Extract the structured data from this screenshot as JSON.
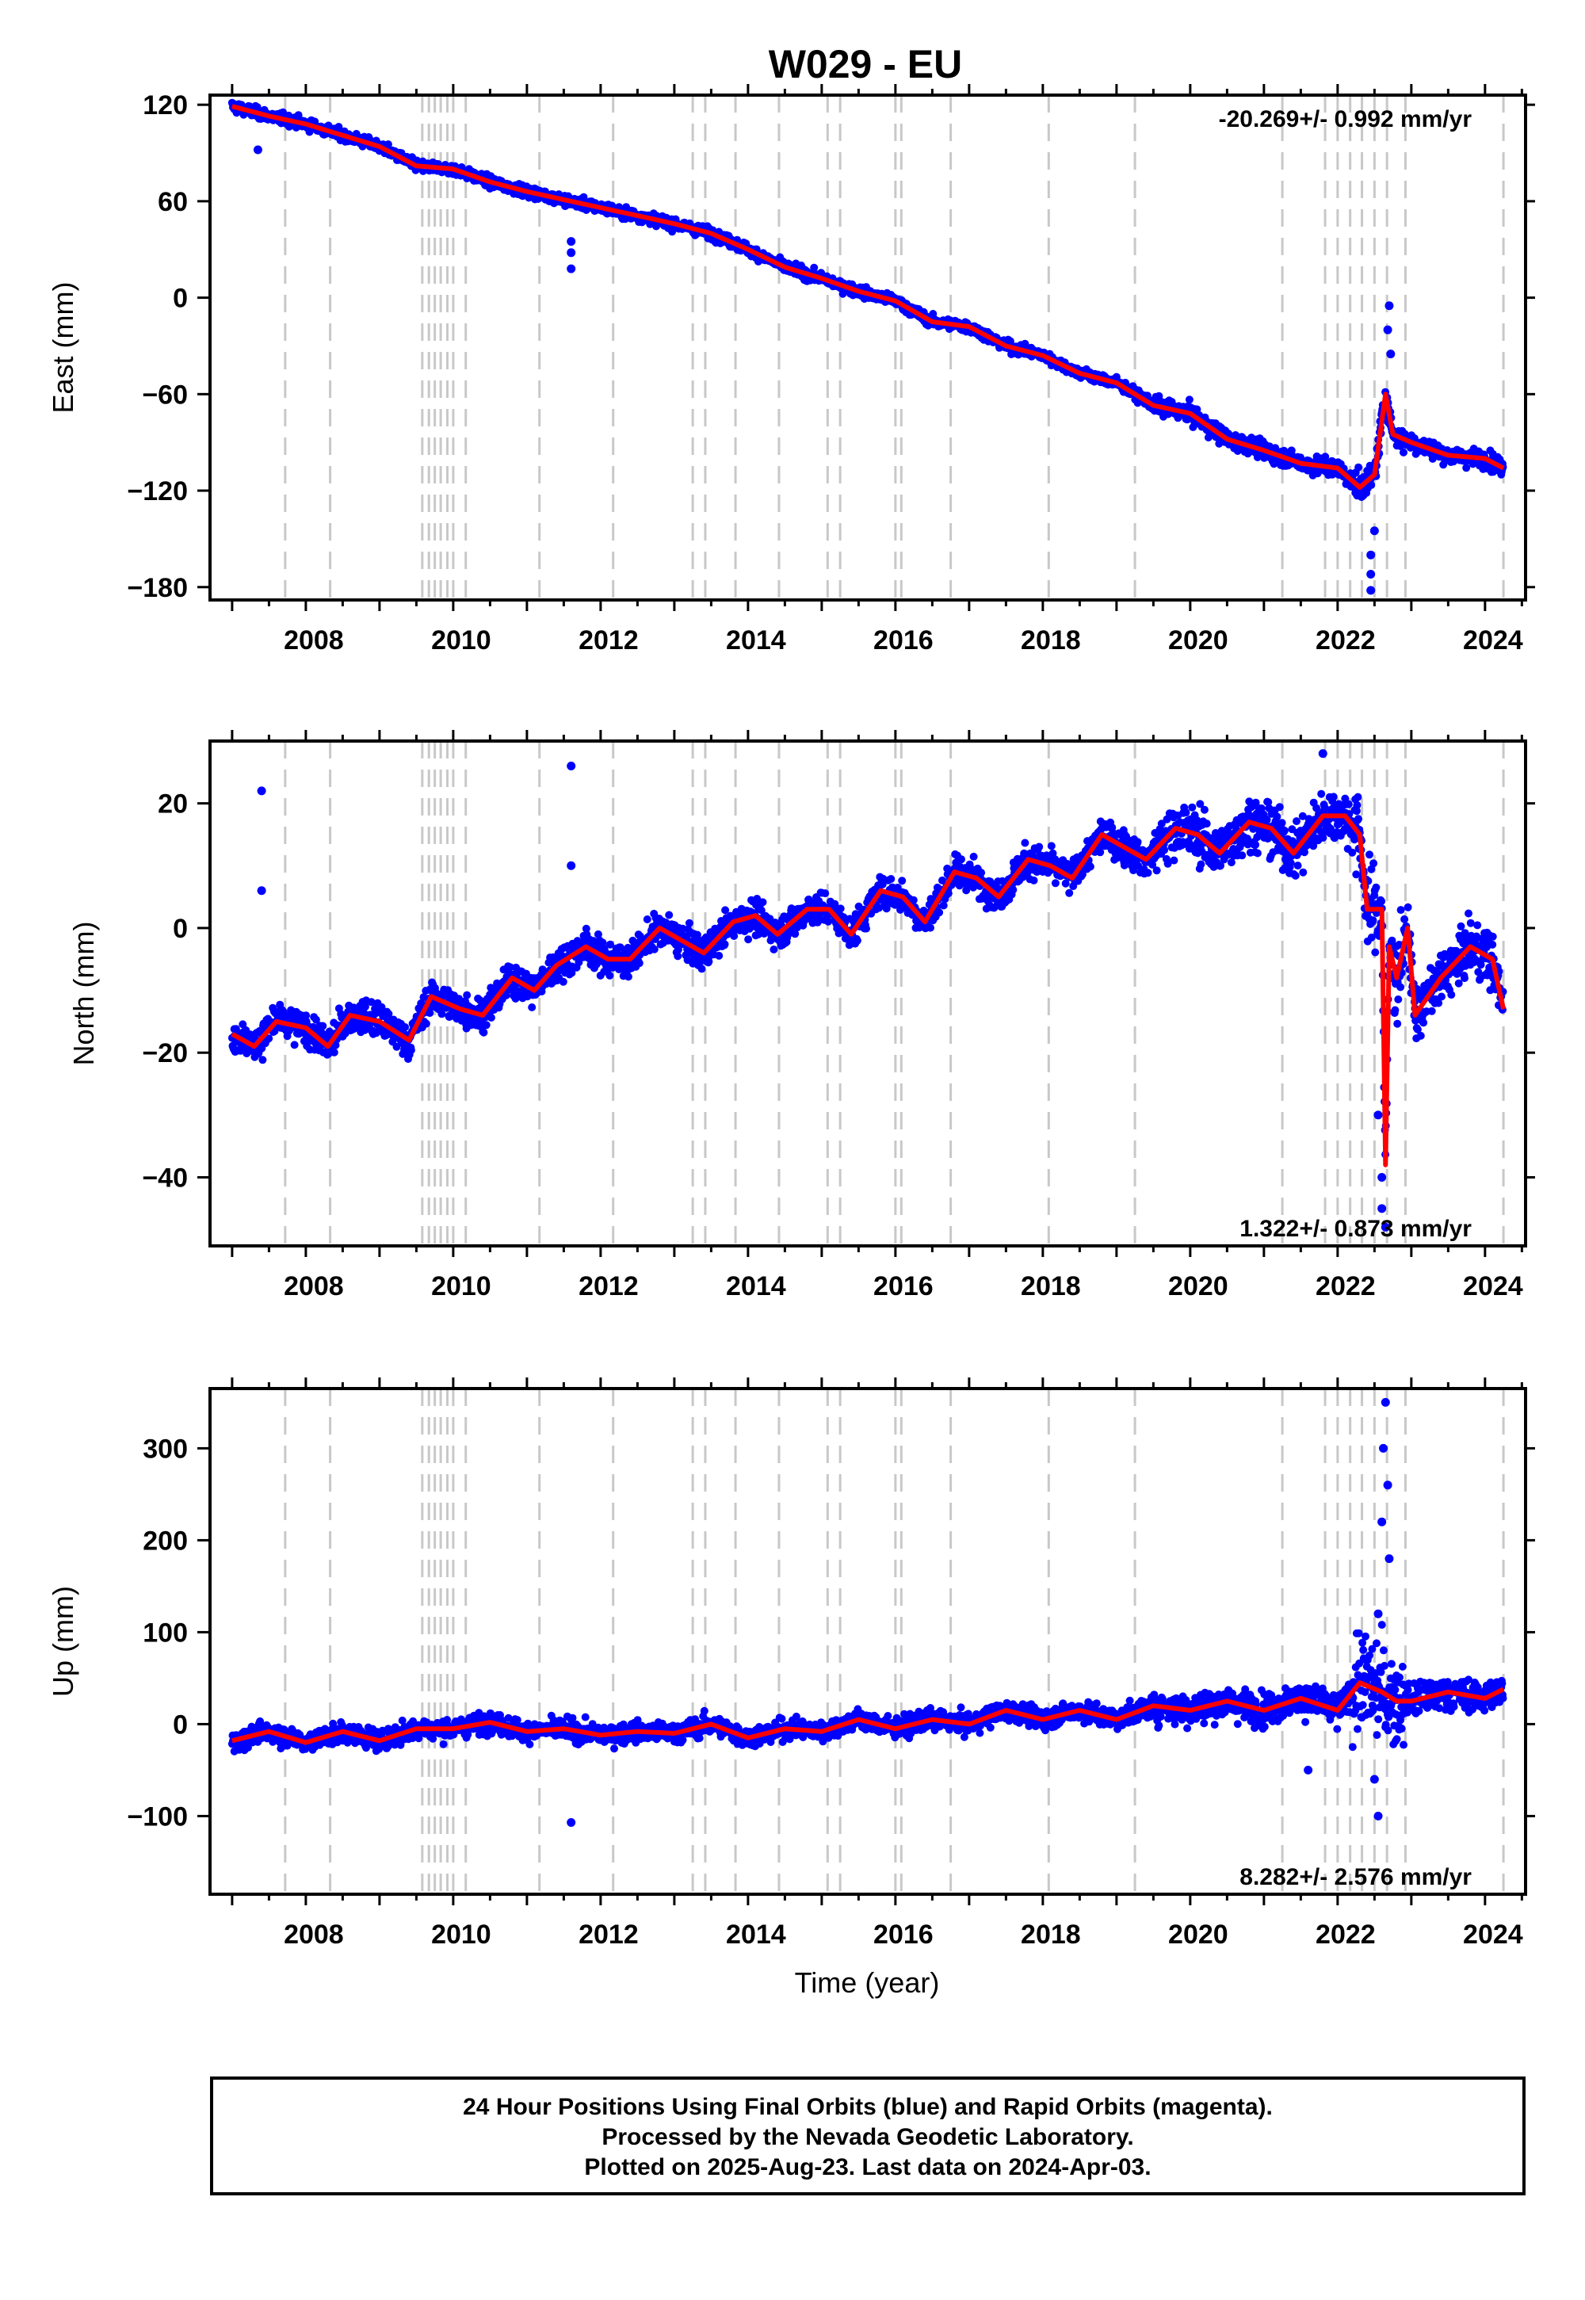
{
  "chart_data": {
    "title": "W029 - EU",
    "type": "scatter",
    "xlabel": "Time (year)",
    "xlim": [
      2006.7,
      2024.55
    ],
    "x_ticks": [
      2008,
      2010,
      2012,
      2014,
      2016,
      2018,
      2020,
      2022,
      2024
    ],
    "x_tick_labels": [
      "2008",
      "2010",
      "2012",
      "2014",
      "2016",
      "2018",
      "2020",
      "2022",
      "2024"
    ],
    "data_start": 2007.0,
    "data_end": 2024.25,
    "colors": {
      "final_orbits": "#0000ff",
      "rapid_orbits": "#ff00ff",
      "model": "#ff0000",
      "steps": "#c8c8c8"
    },
    "step_lines": [
      2007.72,
      2008.33,
      2009.58,
      2009.67,
      2009.75,
      2009.83,
      2009.92,
      2010.0,
      2010.17,
      2011.17,
      2012.17,
      2013.25,
      2013.42,
      2013.83,
      2014.42,
      2015.08,
      2015.25,
      2016.0,
      2016.08,
      2016.75,
      2018.08,
      2019.25,
      2021.25,
      2021.83,
      2022.0,
      2022.17,
      2022.33,
      2022.5,
      2022.67,
      2022.92,
      2024.25
    ],
    "panels": [
      {
        "id": "east",
        "ylabel": "East (mm)",
        "ylim": [
          -188,
          126
        ],
        "y_ticks": [
          120,
          60,
          0,
          -60,
          -120,
          -180
        ],
        "y_tick_labels": [
          "120",
          "60",
          "0",
          "−60",
          "−120",
          "−180"
        ],
        "rate_text": "-20.269+/- 0.992 mm/yr",
        "rate_position": "top-right",
        "model_series": [
          {
            "x": 2007.0,
            "y": 119
          },
          {
            "x": 2007.5,
            "y": 113
          },
          {
            "x": 2008.0,
            "y": 108
          },
          {
            "x": 2008.5,
            "y": 101
          },
          {
            "x": 2009.0,
            "y": 94
          },
          {
            "x": 2009.5,
            "y": 82
          },
          {
            "x": 2010.0,
            "y": 80
          },
          {
            "x": 2010.5,
            "y": 72
          },
          {
            "x": 2011.0,
            "y": 66
          },
          {
            "x": 2011.5,
            "y": 61
          },
          {
            "x": 2012.0,
            "y": 56
          },
          {
            "x": 2012.5,
            "y": 51
          },
          {
            "x": 2013.0,
            "y": 46
          },
          {
            "x": 2013.5,
            "y": 40
          },
          {
            "x": 2014.0,
            "y": 30
          },
          {
            "x": 2014.5,
            "y": 19
          },
          {
            "x": 2015.0,
            "y": 12
          },
          {
            "x": 2015.5,
            "y": 4
          },
          {
            "x": 2016.0,
            "y": -2
          },
          {
            "x": 2016.5,
            "y": -15
          },
          {
            "x": 2017.0,
            "y": -18
          },
          {
            "x": 2017.5,
            "y": -30
          },
          {
            "x": 2018.0,
            "y": -36
          },
          {
            "x": 2018.5,
            "y": -47
          },
          {
            "x": 2019.0,
            "y": -53
          },
          {
            "x": 2019.5,
            "y": -67
          },
          {
            "x": 2020.0,
            "y": -72
          },
          {
            "x": 2020.5,
            "y": -88
          },
          {
            "x": 2021.0,
            "y": -95
          },
          {
            "x": 2021.5,
            "y": -103
          },
          {
            "x": 2022.0,
            "y": -106
          },
          {
            "x": 2022.3,
            "y": -118
          },
          {
            "x": 2022.5,
            "y": -110
          },
          {
            "x": 2022.65,
            "y": -60
          },
          {
            "x": 2022.75,
            "y": -85
          },
          {
            "x": 2023.0,
            "y": -90
          },
          {
            "x": 2023.5,
            "y": -98
          },
          {
            "x": 2024.0,
            "y": -100
          },
          {
            "x": 2024.25,
            "y": -106
          }
        ],
        "outliers": [
          {
            "x": 2007.35,
            "y": 92
          },
          {
            "x": 2011.6,
            "y": 18
          },
          {
            "x": 2011.6,
            "y": 28
          },
          {
            "x": 2011.6,
            "y": 35
          },
          {
            "x": 2022.45,
            "y": -160
          },
          {
            "x": 2022.45,
            "y": -172
          },
          {
            "x": 2022.45,
            "y": -182
          },
          {
            "x": 2022.5,
            "y": -145
          },
          {
            "x": 2022.7,
            "y": -5
          },
          {
            "x": 2022.68,
            "y": -20
          },
          {
            "x": 2022.72,
            "y": -35
          }
        ]
      },
      {
        "id": "north",
        "ylabel": "North (mm)",
        "ylim": [
          -51,
          30
        ],
        "y_ticks": [
          20,
          0,
          -20,
          -40
        ],
        "y_tick_labels": [
          "20",
          "0",
          "−20",
          "−40"
        ],
        "rate_text": "1.322+/- 0.873 mm/yr",
        "rate_position": "bottom-right",
        "model_series": [
          {
            "x": 2007.0,
            "y": -17
          },
          {
            "x": 2007.3,
            "y": -19
          },
          {
            "x": 2007.6,
            "y": -15
          },
          {
            "x": 2008.0,
            "y": -16
          },
          {
            "x": 2008.3,
            "y": -19
          },
          {
            "x": 2008.6,
            "y": -14
          },
          {
            "x": 2009.0,
            "y": -15
          },
          {
            "x": 2009.4,
            "y": -18
          },
          {
            "x": 2009.7,
            "y": -11
          },
          {
            "x": 2010.1,
            "y": -13
          },
          {
            "x": 2010.4,
            "y": -14
          },
          {
            "x": 2010.8,
            "y": -8
          },
          {
            "x": 2011.1,
            "y": -10
          },
          {
            "x": 2011.4,
            "y": -6
          },
          {
            "x": 2011.8,
            "y": -3
          },
          {
            "x": 2012.1,
            "y": -5
          },
          {
            "x": 2012.4,
            "y": -5
          },
          {
            "x": 2012.8,
            "y": 0
          },
          {
            "x": 2013.1,
            "y": -2
          },
          {
            "x": 2013.4,
            "y": -4
          },
          {
            "x": 2013.8,
            "y": 1
          },
          {
            "x": 2014.1,
            "y": 2
          },
          {
            "x": 2014.4,
            "y": -1
          },
          {
            "x": 2014.8,
            "y": 3
          },
          {
            "x": 2015.1,
            "y": 3
          },
          {
            "x": 2015.4,
            "y": -1
          },
          {
            "x": 2015.8,
            "y": 6
          },
          {
            "x": 2016.1,
            "y": 5
          },
          {
            "x": 2016.4,
            "y": 1
          },
          {
            "x": 2016.8,
            "y": 9
          },
          {
            "x": 2017.1,
            "y": 8
          },
          {
            "x": 2017.4,
            "y": 5
          },
          {
            "x": 2017.8,
            "y": 11
          },
          {
            "x": 2018.1,
            "y": 10
          },
          {
            "x": 2018.4,
            "y": 8
          },
          {
            "x": 2018.8,
            "y": 15
          },
          {
            "x": 2019.1,
            "y": 13
          },
          {
            "x": 2019.4,
            "y": 11
          },
          {
            "x": 2019.8,
            "y": 16
          },
          {
            "x": 2020.1,
            "y": 15
          },
          {
            "x": 2020.4,
            "y": 12
          },
          {
            "x": 2020.8,
            "y": 17
          },
          {
            "x": 2021.1,
            "y": 16
          },
          {
            "x": 2021.4,
            "y": 12
          },
          {
            "x": 2021.8,
            "y": 18
          },
          {
            "x": 2022.1,
            "y": 18
          },
          {
            "x": 2022.3,
            "y": 15
          },
          {
            "x": 2022.4,
            "y": 3
          },
          {
            "x": 2022.6,
            "y": 3
          },
          {
            "x": 2022.65,
            "y": -38
          },
          {
            "x": 2022.7,
            "y": -3
          },
          {
            "x": 2022.8,
            "y": -8
          },
          {
            "x": 2022.95,
            "y": 0
          },
          {
            "x": 2023.05,
            "y": -14
          },
          {
            "x": 2023.4,
            "y": -8
          },
          {
            "x": 2023.8,
            "y": -3
          },
          {
            "x": 2024.1,
            "y": -5
          },
          {
            "x": 2024.25,
            "y": -13
          }
        ],
        "outliers": [
          {
            "x": 2007.4,
            "y": 22
          },
          {
            "x": 2007.4,
            "y": 6
          },
          {
            "x": 2011.6,
            "y": 26
          },
          {
            "x": 2011.6,
            "y": 10
          },
          {
            "x": 2022.55,
            "y": -30
          },
          {
            "x": 2022.6,
            "y": -40
          },
          {
            "x": 2022.6,
            "y": -45
          },
          {
            "x": 2022.65,
            "y": -48
          },
          {
            "x": 2021.8,
            "y": 28
          }
        ]
      },
      {
        "id": "up",
        "ylabel": "Up (mm)",
        "ylim": [
          -185,
          365
        ],
        "y_ticks": [
          300,
          200,
          100,
          0,
          -100
        ],
        "y_tick_labels": [
          "300",
          "200",
          "100",
          "0",
          "−100"
        ],
        "rate_text": "8.282+/- 2.576 mm/yr",
        "rate_position": "bottom-right",
        "model_series": [
          {
            "x": 2007.0,
            "y": -18
          },
          {
            "x": 2007.5,
            "y": -8
          },
          {
            "x": 2008.0,
            "y": -20
          },
          {
            "x": 2008.5,
            "y": -8
          },
          {
            "x": 2009.0,
            "y": -18
          },
          {
            "x": 2009.5,
            "y": -5
          },
          {
            "x": 2010.0,
            "y": -5
          },
          {
            "x": 2010.5,
            "y": 2
          },
          {
            "x": 2011.0,
            "y": -8
          },
          {
            "x": 2011.5,
            "y": -5
          },
          {
            "x": 2012.0,
            "y": -12
          },
          {
            "x": 2012.5,
            "y": -8
          },
          {
            "x": 2013.0,
            "y": -10
          },
          {
            "x": 2013.5,
            "y": 0
          },
          {
            "x": 2014.0,
            "y": -15
          },
          {
            "x": 2014.5,
            "y": -5
          },
          {
            "x": 2015.0,
            "y": -8
          },
          {
            "x": 2015.5,
            "y": 5
          },
          {
            "x": 2016.0,
            "y": -5
          },
          {
            "x": 2016.5,
            "y": 5
          },
          {
            "x": 2017.0,
            "y": 0
          },
          {
            "x": 2017.5,
            "y": 15
          },
          {
            "x": 2018.0,
            "y": 5
          },
          {
            "x": 2018.5,
            "y": 15
          },
          {
            "x": 2019.0,
            "y": 5
          },
          {
            "x": 2019.5,
            "y": 20
          },
          {
            "x": 2020.0,
            "y": 15
          },
          {
            "x": 2020.5,
            "y": 25
          },
          {
            "x": 2021.0,
            "y": 15
          },
          {
            "x": 2021.5,
            "y": 28
          },
          {
            "x": 2022.0,
            "y": 15
          },
          {
            "x": 2022.3,
            "y": 45
          },
          {
            "x": 2022.6,
            "y": 35
          },
          {
            "x": 2022.8,
            "y": 25
          },
          {
            "x": 2023.0,
            "y": 25
          },
          {
            "x": 2023.5,
            "y": 35
          },
          {
            "x": 2024.0,
            "y": 28
          },
          {
            "x": 2024.25,
            "y": 38
          }
        ],
        "outliers": [
          {
            "x": 2011.6,
            "y": -107
          },
          {
            "x": 2022.65,
            "y": 350
          },
          {
            "x": 2022.62,
            "y": 300
          },
          {
            "x": 2022.68,
            "y": 260
          },
          {
            "x": 2022.6,
            "y": 220
          },
          {
            "x": 2022.7,
            "y": 180
          },
          {
            "x": 2022.55,
            "y": 120
          },
          {
            "x": 2022.5,
            "y": -60
          },
          {
            "x": 2022.55,
            "y": -100
          },
          {
            "x": 2021.6,
            "y": -50
          }
        ]
      }
    ]
  },
  "footer": {
    "line1": "24 Hour Positions Using Final Orbits (blue) and Rapid Orbits (magenta).",
    "line2": "Processed by the Nevada Geodetic Laboratory.",
    "line3": "Plotted on 2025-Aug-23. Last data on 2024-Apr-03."
  }
}
